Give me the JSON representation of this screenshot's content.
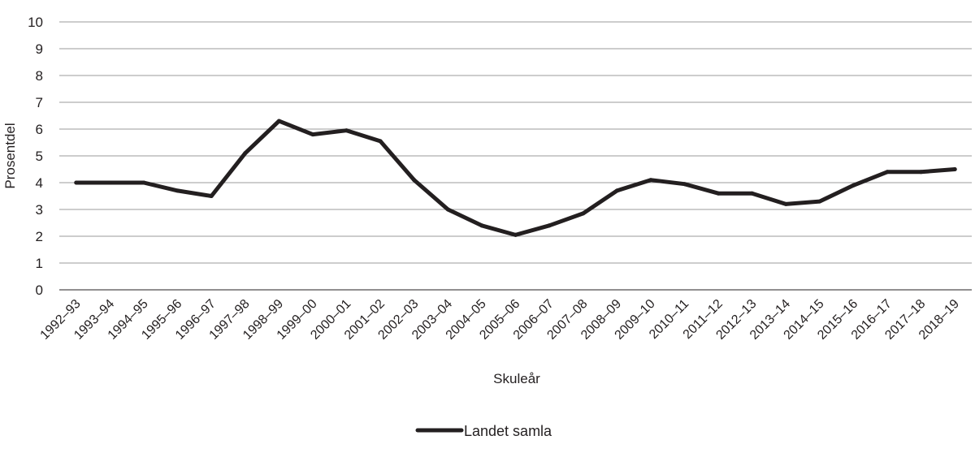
{
  "chart_data": {
    "type": "line",
    "xlabel": "Skuleår",
    "ylabel": "Prosentdel",
    "ylim": [
      0,
      10
    ],
    "yticks": [
      0,
      1,
      2,
      3,
      4,
      5,
      6,
      7,
      8,
      9,
      10
    ],
    "grid": true,
    "legend_position": "bottom",
    "categories": [
      "1992–93",
      "1993–94",
      "1994–95",
      "1995–96",
      "1996–97",
      "1997–98",
      "1998–99",
      "1999–00",
      "2000–01",
      "2001–02",
      "2002–03",
      "2003–04",
      "2004–05",
      "2005–06",
      "2006–07",
      "2007–08",
      "2008–09",
      "2009–10",
      "2010–11",
      "2011–12",
      "2012–13",
      "2013–14",
      "2014–15",
      "2015–16",
      "2016–17",
      "2017–18",
      "2018–19"
    ],
    "series": [
      {
        "name": "Landet samla",
        "color": "#231f20",
        "values": [
          4.0,
          4.0,
          4.0,
          3.7,
          3.5,
          5.1,
          6.3,
          5.8,
          5.95,
          5.55,
          4.1,
          3.0,
          2.4,
          2.05,
          2.4,
          2.85,
          3.7,
          4.1,
          3.95,
          3.6,
          3.6,
          3.2,
          3.3,
          3.9,
          4.4,
          4.4,
          4.5
        ]
      }
    ]
  }
}
